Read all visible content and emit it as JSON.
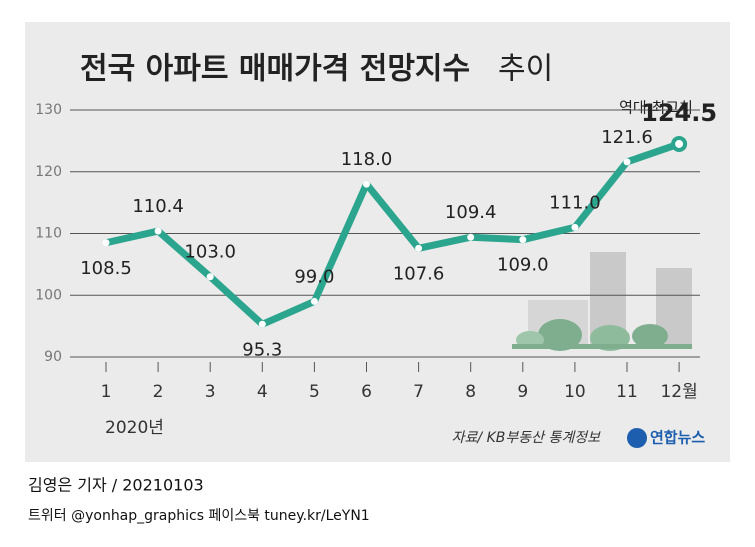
{
  "chart_data": {
    "type": "line",
    "title": "전국 아파트 매매가격 전망지수",
    "title_light": "추이",
    "categories": [
      "1",
      "2",
      "3",
      "4",
      "5",
      "6",
      "7",
      "8",
      "9",
      "10",
      "11",
      "12월"
    ],
    "x_subtitle": "2020년",
    "series": [
      {
        "name": "전국 아파트 매매가격 전망지수",
        "color": "#2ba58e",
        "values": [
          108.5,
          110.4,
          103.0,
          95.3,
          99.0,
          118.0,
          107.6,
          109.4,
          109.0,
          111.0,
          121.6,
          124.5
        ],
        "value_labels": [
          "108.5",
          "110.4",
          "103.0",
          "95.3",
          "99.0",
          "118.0",
          "107.6",
          "109.4",
          "109.0",
          "111.0",
          "121.6",
          "124.5"
        ]
      }
    ],
    "ylim": [
      90,
      130
    ],
    "yticks": [
      90,
      100,
      110,
      120,
      130
    ],
    "grid": true,
    "annotation": "역대 최고치",
    "source": "자료/ KB부동산 통계정보",
    "logo": "연합뉴스",
    "credit": "김영은 기자 / 20210103",
    "social": "트위터 @yonhap_graphics  페이스북 tuney.kr/LeYN1"
  }
}
